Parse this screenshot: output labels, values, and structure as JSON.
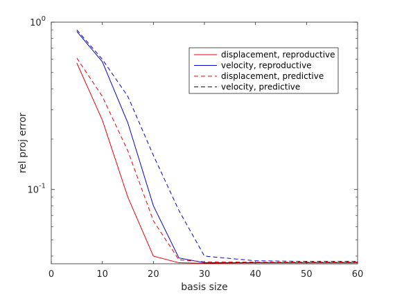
{
  "chart_data": {
    "type": "line",
    "xlabel": "basis size",
    "ylabel": "rel proj error",
    "xlim": [
      0,
      60
    ],
    "ylim": [
      0.036,
      1
    ],
    "yscale": "log",
    "x_ticks": [
      0,
      10,
      20,
      30,
      40,
      50,
      60
    ],
    "y_ticks": [
      {
        "value": 0.1,
        "base": "10",
        "exp": "-1"
      },
      {
        "value": 1,
        "base": "10",
        "exp": "0"
      }
    ],
    "grid": false,
    "box": true,
    "legend_position": "top-right",
    "series": [
      {
        "name": "displacement, reproductive",
        "color": "#e8000b",
        "dash": "solid",
        "x": [
          5,
          10,
          15,
          20,
          25,
          30,
          40,
          50,
          60
        ],
        "y": [
          0.57,
          0.26,
          0.09,
          0.04,
          0.0365,
          0.0362,
          0.036,
          0.036,
          0.036
        ]
      },
      {
        "name": "velocity, reproductive",
        "color": "#0000cc",
        "dash": "solid",
        "x": [
          5,
          10,
          15,
          20,
          25,
          30,
          40,
          50,
          60
        ],
        "y": [
          0.88,
          0.58,
          0.25,
          0.08,
          0.039,
          0.0365,
          0.0365,
          0.0365,
          0.0365
        ]
      },
      {
        "name": "displacement, predictive",
        "color": "#e8000b",
        "dash": "dashed",
        "x": [
          5,
          10,
          15,
          20,
          25,
          30,
          40,
          50,
          60
        ],
        "y": [
          0.61,
          0.36,
          0.17,
          0.065,
          0.038,
          0.037,
          0.0368,
          0.0368,
          0.0368
        ]
      },
      {
        "name": "velocity, predictive",
        "color": "#0000cc",
        "dash": "dashed",
        "x": [
          5,
          10,
          15,
          20,
          25,
          30,
          40,
          50,
          60
        ],
        "y": [
          0.9,
          0.6,
          0.36,
          0.16,
          0.075,
          0.04,
          0.0375,
          0.0372,
          0.0372
        ]
      }
    ]
  }
}
